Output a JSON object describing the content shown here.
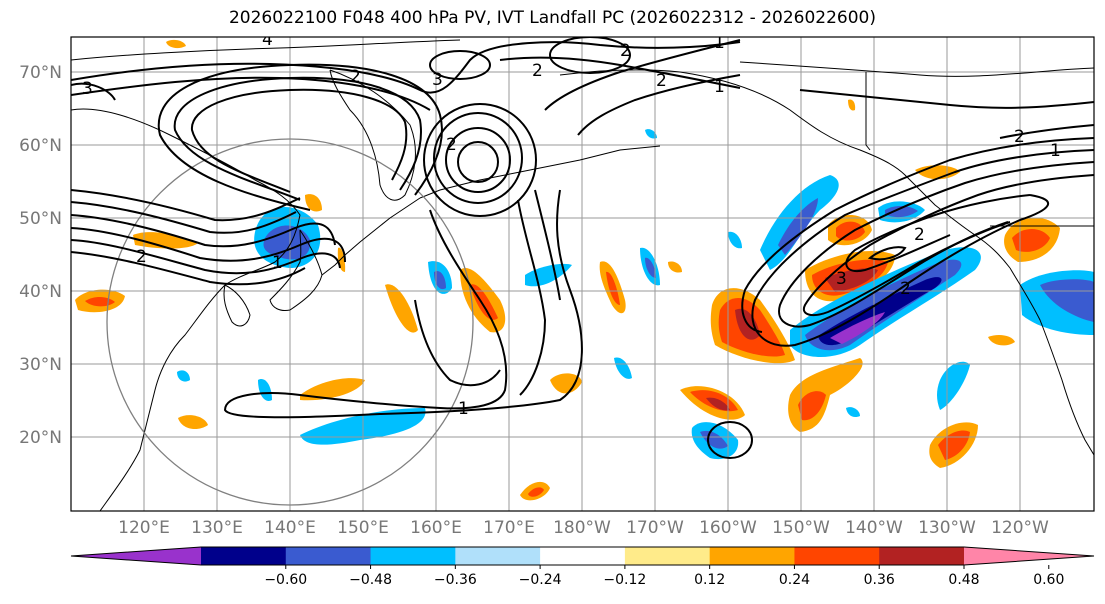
{
  "title": "2026022100 F048 400 hPa PV, IVT Landfall PC (2026022312 - 2026022600)",
  "lat_labels": [
    "70°N",
    "60°N",
    "50°N",
    "40°N",
    "30°N",
    "20°N"
  ],
  "lon_labels": [
    "120°E",
    "130°E",
    "140°E",
    "150°E",
    "160°E",
    "170°E",
    "180°W",
    "170°W",
    "160°W",
    "150°W",
    "140°W",
    "130°W",
    "120°W"
  ],
  "colorbar": {
    "ticks": [
      "−0.60",
      "−0.48",
      "−0.36",
      "−0.24",
      "−0.12",
      "0.12",
      "0.24",
      "0.36",
      "0.48",
      "0.60"
    ],
    "colors": [
      "#9932cc",
      "#00008b",
      "#3a5bd0",
      "#00bfff",
      "#b0e0fa",
      "#ffffff",
      "#ffeb8a",
      "#ffa500",
      "#ff4500",
      "#b22222",
      "#ff85a8"
    ]
  },
  "contour_labels": [
    "4",
    "3",
    "2",
    "2",
    "2",
    "1",
    "1",
    "2",
    "3",
    "2",
    "1",
    "3",
    "2",
    "1",
    "2",
    "1",
    "2",
    "2"
  ]
}
